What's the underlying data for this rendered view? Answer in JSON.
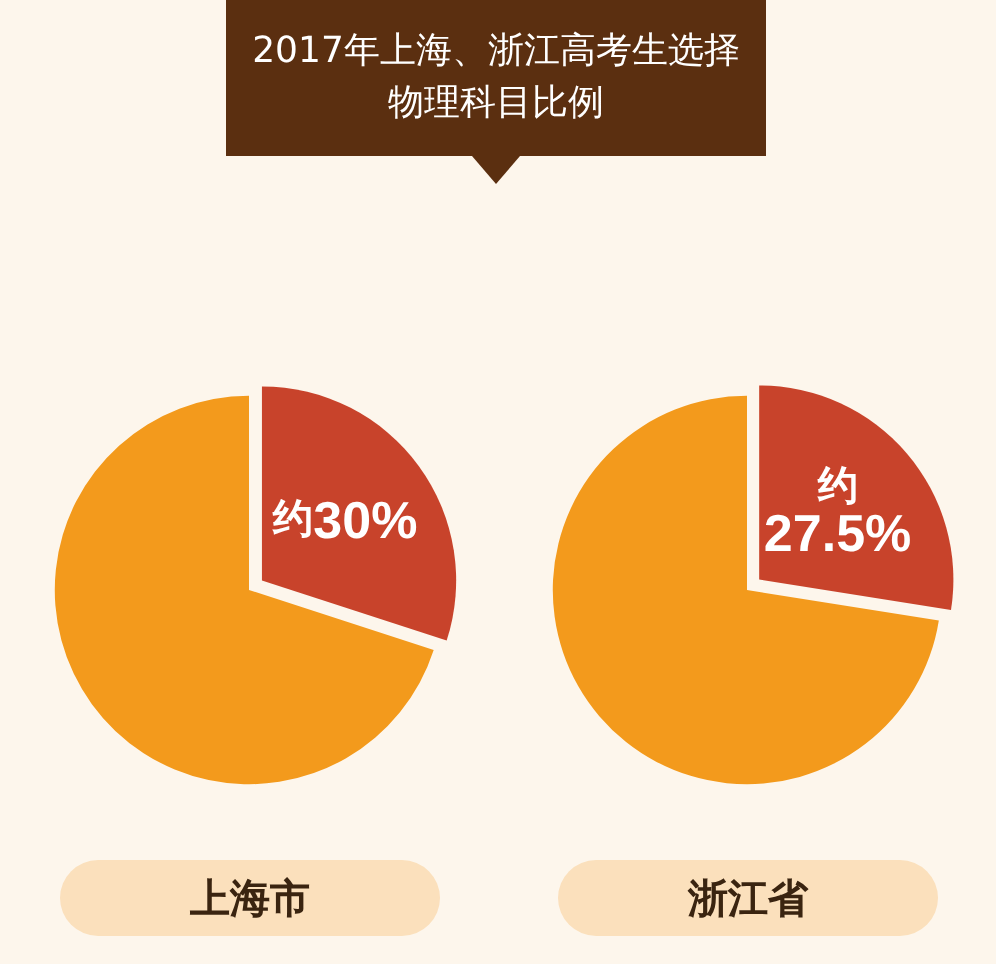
{
  "chart_data": [
    {
      "type": "pie",
      "title": "2017年上海、浙江高考生选择物理科目比例",
      "xlabel": "上海市",
      "categories": [
        null,
        null
      ],
      "values": [
        30,
        70
      ],
      "colors": [
        "#c8432b",
        "#f39a1c"
      ],
      "value_labels": [
        "约30%",
        null
      ]
    },
    {
      "type": "pie",
      "xlabel": "浙江省",
      "categories": [
        null,
        null
      ],
      "values": [
        27.5,
        72.5
      ],
      "colors": [
        "#c8432b",
        "#f39a1c"
      ],
      "value_labels": [
        "约\n27.5%",
        null
      ]
    }
  ]
}
